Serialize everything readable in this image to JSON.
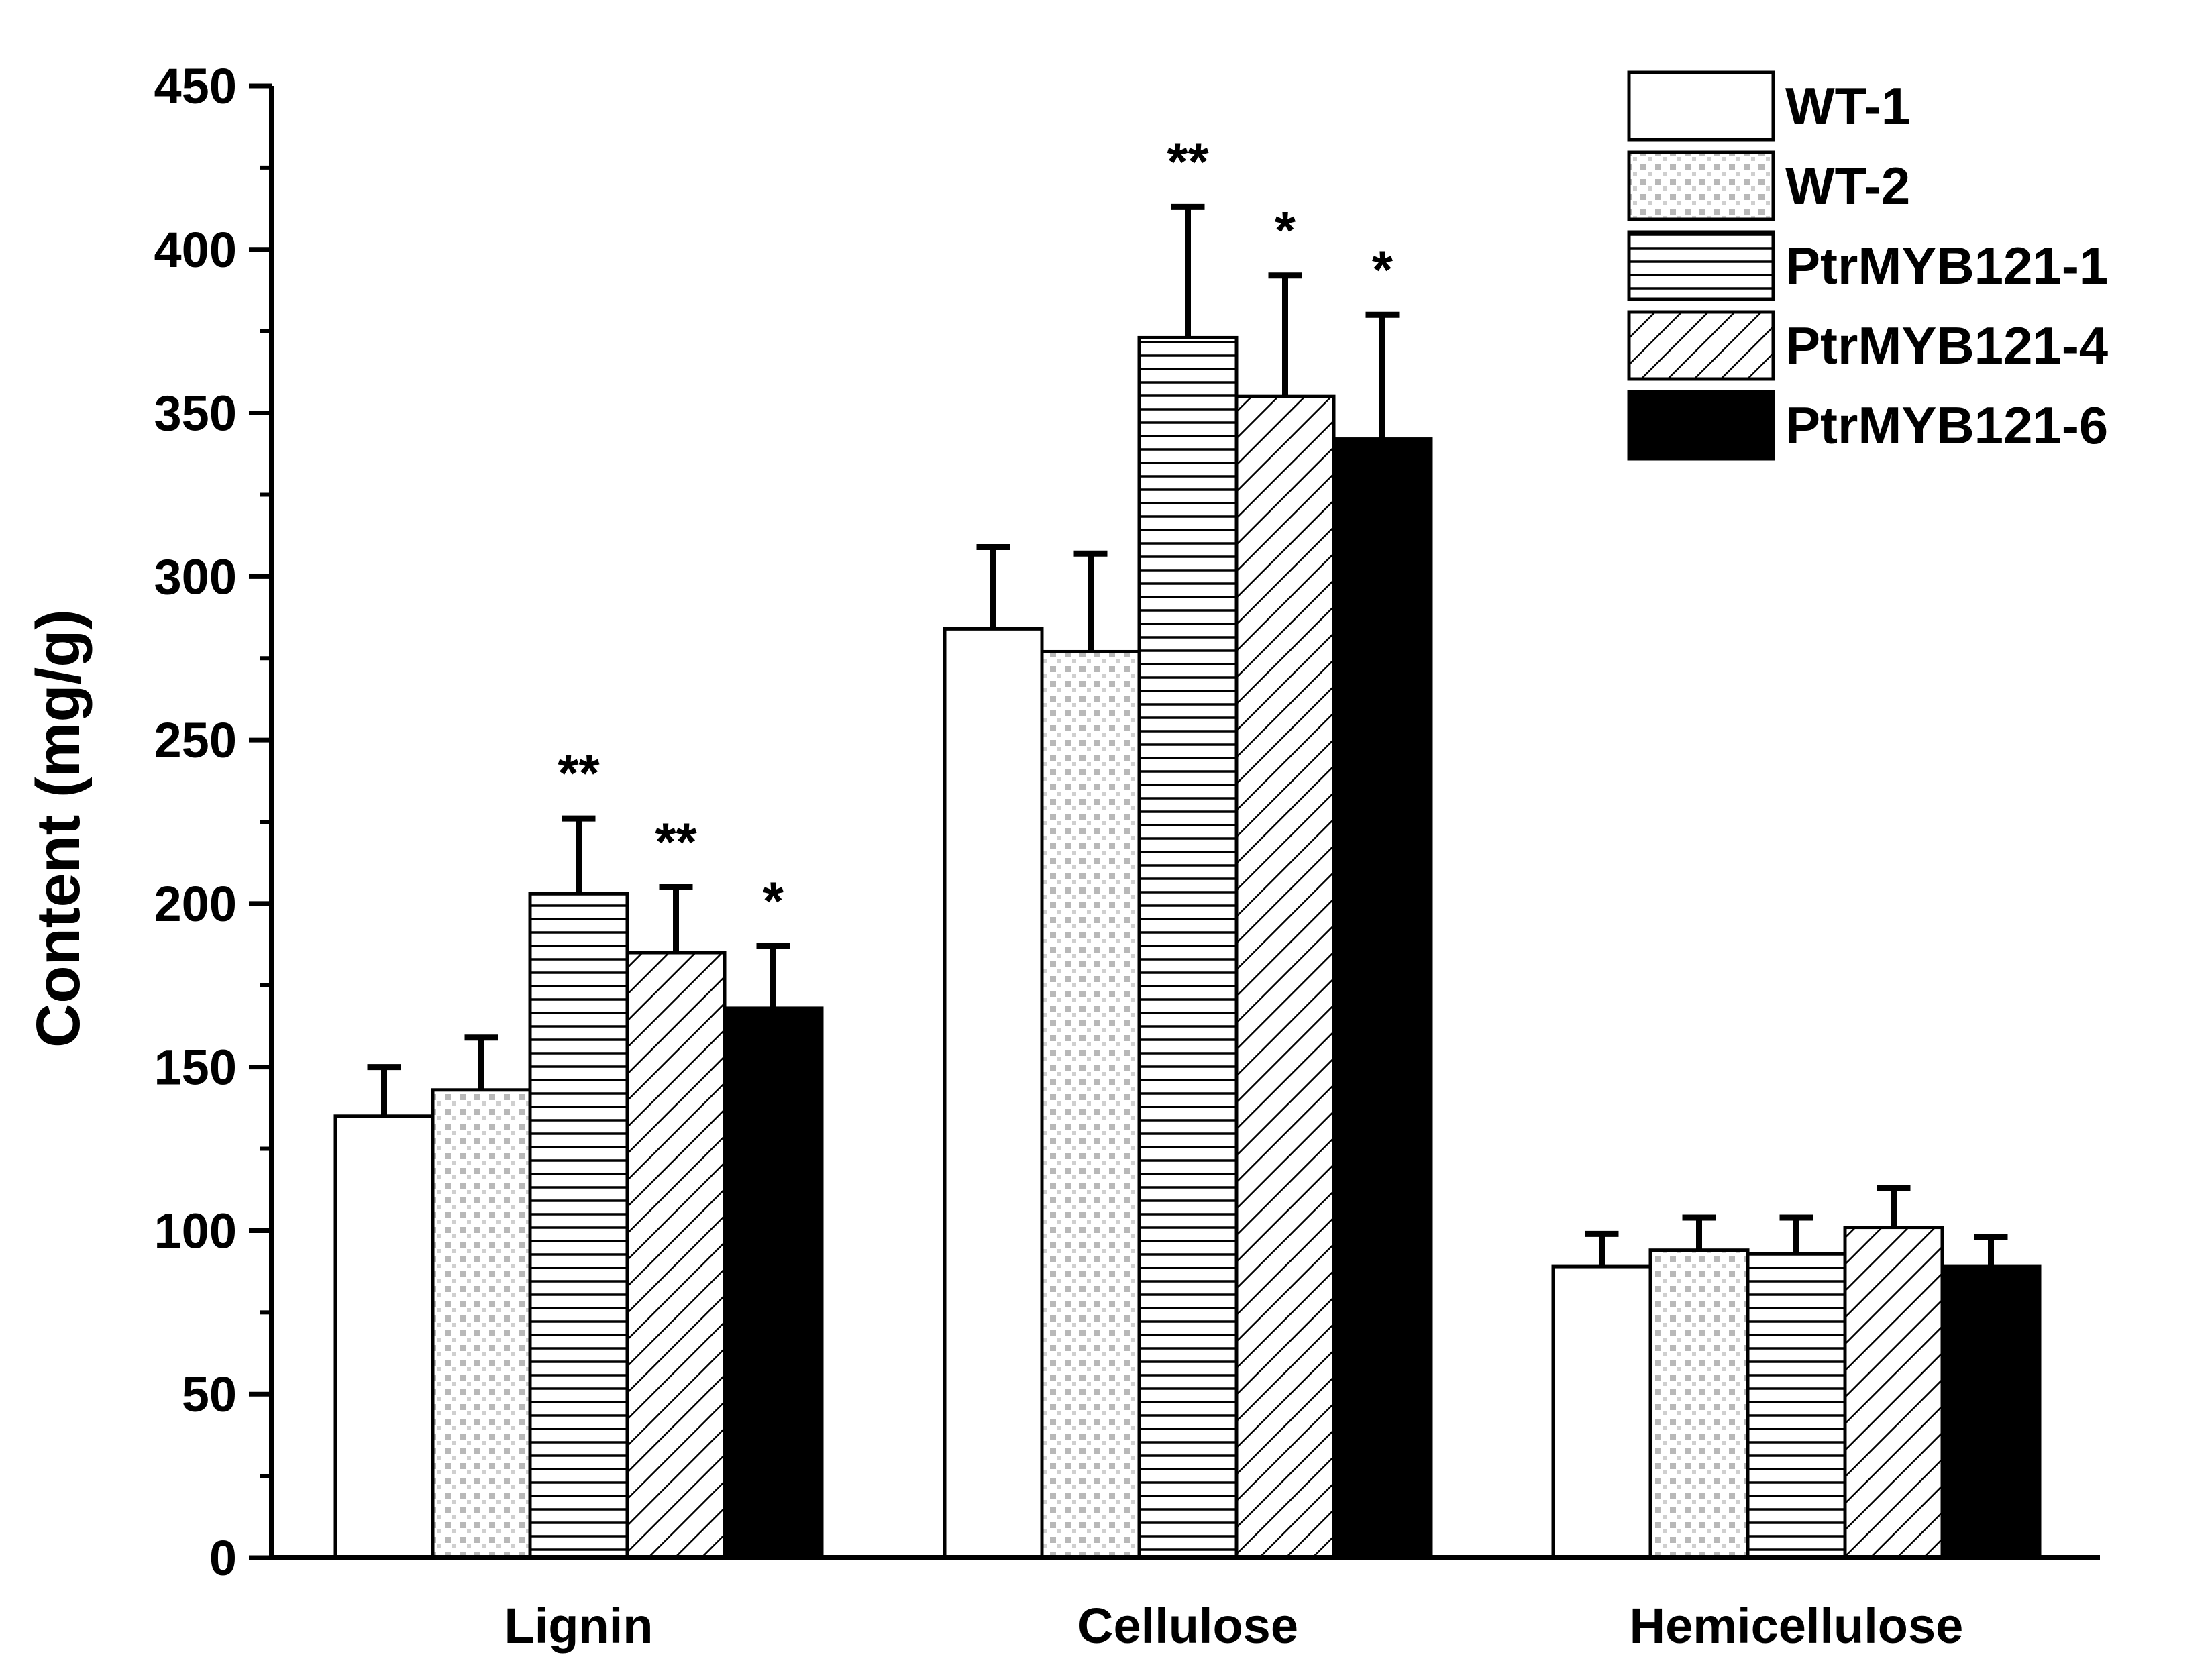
{
  "chart_data": {
    "type": "bar",
    "title": "",
    "xlabel": "",
    "ylabel": "Content (mg/g)",
    "ylim": [
      0,
      450
    ],
    "yticks": [
      0,
      50,
      100,
      150,
      200,
      250,
      300,
      350,
      400,
      450
    ],
    "grid": false,
    "legend_position": "top-right",
    "categories": [
      "Lignin",
      "Cellulose",
      "Hemicellulose"
    ],
    "series": [
      {
        "name": "WT-1",
        "pattern": "none",
        "values": [
          135,
          284,
          89
        ],
        "errors": [
          15,
          25,
          10
        ],
        "significance": [
          "",
          "",
          ""
        ]
      },
      {
        "name": "WT-2",
        "pattern": "dots",
        "values": [
          143,
          277,
          94
        ],
        "errors": [
          16,
          30,
          10
        ],
        "significance": [
          "",
          "",
          ""
        ]
      },
      {
        "name": "PtrMYB121-1",
        "pattern": "horizontal-lines",
        "values": [
          203,
          373,
          93
        ],
        "errors": [
          23,
          40,
          11
        ],
        "significance": [
          "**",
          "**",
          ""
        ]
      },
      {
        "name": "PtrMYB121-4",
        "pattern": "diagonal-lines",
        "values": [
          185,
          355,
          101
        ],
        "errors": [
          20,
          37,
          12
        ],
        "significance": [
          "**",
          "*",
          ""
        ]
      },
      {
        "name": "PtrMYB121-6",
        "pattern": "solid-black",
        "values": [
          168,
          342,
          89
        ],
        "errors": [
          19,
          38,
          9
        ],
        "significance": [
          "*",
          "*",
          ""
        ]
      }
    ],
    "colors": {
      "axis": "#000000",
      "bar_edge": "#000000",
      "fill_white": "#ffffff",
      "fill_black": "#000000",
      "dot": "#bdbdbd"
    }
  }
}
